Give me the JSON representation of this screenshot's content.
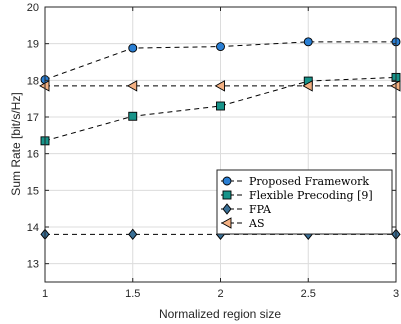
{
  "chart_data": {
    "type": "line",
    "title": "",
    "xlabel": "Normalized region size",
    "ylabel": "Sum Rate [bit/s/Hz]",
    "xlim": [
      1,
      3
    ],
    "ylim": [
      12.5,
      20
    ],
    "xticks": [
      1,
      1.5,
      2,
      2.5,
      3
    ],
    "yticks": [
      13,
      14,
      15,
      16,
      17,
      18,
      19,
      20
    ],
    "x_tick_labels": [
      "1",
      "1.5",
      "2",
      "2.5",
      "3"
    ],
    "y_tick_labels": [
      "13",
      "14",
      "15",
      "16",
      "17",
      "18",
      "19",
      "20"
    ],
    "grid": true,
    "legend_position": "center-right",
    "x": [
      1,
      1.5,
      2,
      2.5,
      3
    ],
    "series": [
      {
        "name": "Proposed Framework",
        "values": [
          18.02,
          18.88,
          18.92,
          19.05,
          19.05
        ],
        "marker": "circle",
        "color": "#2a7fd4"
      },
      {
        "name": "Flexible Precoding [9]",
        "values": [
          16.35,
          17.02,
          17.3,
          17.98,
          18.08
        ],
        "marker": "square",
        "color": "#17948a"
      },
      {
        "name": "FPA",
        "values": [
          13.8,
          13.8,
          13.8,
          13.8,
          13.8
        ],
        "marker": "diamond",
        "color": "#3a6f95"
      },
      {
        "name": "AS",
        "values": [
          17.85,
          17.85,
          17.85,
          17.85,
          17.85
        ],
        "marker": "triangle-left",
        "color": "#f4b183"
      }
    ]
  }
}
